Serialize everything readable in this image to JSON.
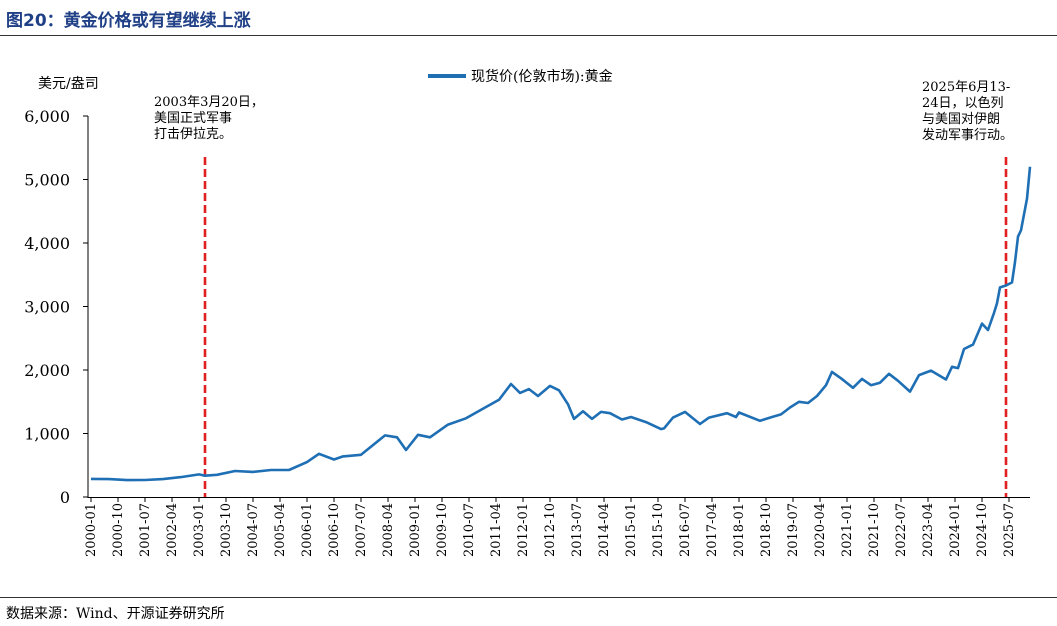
{
  "title": "图20：黄金价格或有望继续上涨",
  "source": "数据来源：Wind、开源证券研究所",
  "chart_data": {
    "type": "line",
    "ylabel": "美元/盎司",
    "ylim": [
      0,
      6000
    ],
    "yticks": [
      0,
      1000,
      2000,
      3000,
      4000,
      5000,
      6000
    ],
    "ytick_labels": [
      "0",
      "1,000",
      "2,000",
      "3,000",
      "4,000",
      "5,000",
      "6,000"
    ],
    "xtick_labels": [
      "2000-01",
      "2000-10",
      "2001-07",
      "2002-04",
      "2003-01",
      "2003-10",
      "2004-07",
      "2005-04",
      "2006-01",
      "2006-10",
      "2007-07",
      "2008-04",
      "2009-01",
      "2009-10",
      "2010-07",
      "2011-04",
      "2012-01",
      "2012-10",
      "2013-07",
      "2014-04",
      "2015-01",
      "2015-10",
      "2016-07",
      "2017-04",
      "2018-01",
      "2018-10",
      "2019-07",
      "2020-04",
      "2021-01",
      "2021-10",
      "2022-07",
      "2023-04",
      "2024-01",
      "2024-10",
      "2025-07"
    ],
    "legend": "top-center",
    "series": [
      {
        "name": "现货价(伦敦市场):黄金",
        "color": "#1f6fb5",
        "points": [
          [
            "2000-01",
            285
          ],
          [
            "2000-07",
            282
          ],
          [
            "2001-01",
            266
          ],
          [
            "2001-07",
            268
          ],
          [
            "2002-01",
            282
          ],
          [
            "2002-07",
            313
          ],
          [
            "2003-01",
            356
          ],
          [
            "2003-03",
            335
          ],
          [
            "2003-07",
            350
          ],
          [
            "2004-01",
            410
          ],
          [
            "2004-07",
            395
          ],
          [
            "2005-01",
            425
          ],
          [
            "2005-07",
            425
          ],
          [
            "2006-01",
            550
          ],
          [
            "2006-05",
            680
          ],
          [
            "2006-10",
            590
          ],
          [
            "2007-01",
            640
          ],
          [
            "2007-07",
            665
          ],
          [
            "2008-03",
            970
          ],
          [
            "2008-07",
            940
          ],
          [
            "2008-10",
            740
          ],
          [
            "2009-02",
            980
          ],
          [
            "2009-06",
            940
          ],
          [
            "2009-12",
            1140
          ],
          [
            "2010-06",
            1240
          ],
          [
            "2010-12",
            1400
          ],
          [
            "2011-05",
            1530
          ],
          [
            "2011-09",
            1780
          ],
          [
            "2011-12",
            1640
          ],
          [
            "2012-03",
            1700
          ],
          [
            "2012-06",
            1590
          ],
          [
            "2012-10",
            1750
          ],
          [
            "2013-01",
            1680
          ],
          [
            "2013-04",
            1460
          ],
          [
            "2013-06",
            1230
          ],
          [
            "2013-09",
            1350
          ],
          [
            "2013-12",
            1230
          ],
          [
            "2014-03",
            1340
          ],
          [
            "2014-06",
            1320
          ],
          [
            "2014-10",
            1220
          ],
          [
            "2015-01",
            1260
          ],
          [
            "2015-06",
            1180
          ],
          [
            "2015-11",
            1070
          ],
          [
            "2015-12",
            1080
          ],
          [
            "2016-03",
            1250
          ],
          [
            "2016-07",
            1340
          ],
          [
            "2016-12",
            1150
          ],
          [
            "2017-03",
            1250
          ],
          [
            "2017-09",
            1320
          ],
          [
            "2017-12",
            1260
          ],
          [
            "2018-01",
            1330
          ],
          [
            "2018-08",
            1200
          ],
          [
            "2018-12",
            1260
          ],
          [
            "2019-03",
            1300
          ],
          [
            "2019-06",
            1410
          ],
          [
            "2019-09",
            1500
          ],
          [
            "2019-12",
            1480
          ],
          [
            "2020-03",
            1590
          ],
          [
            "2020-06",
            1760
          ],
          [
            "2020-08",
            1970
          ],
          [
            "2020-11",
            1870
          ],
          [
            "2021-03",
            1720
          ],
          [
            "2021-06",
            1860
          ],
          [
            "2021-09",
            1760
          ],
          [
            "2021-12",
            1800
          ],
          [
            "2022-03",
            1940
          ],
          [
            "2022-06",
            1830
          ],
          [
            "2022-10",
            1660
          ],
          [
            "2023-01",
            1920
          ],
          [
            "2023-05",
            1990
          ],
          [
            "2023-10",
            1850
          ],
          [
            "2023-12",
            2050
          ],
          [
            "2024-02",
            2030
          ],
          [
            "2024-04",
            2330
          ],
          [
            "2024-07",
            2400
          ],
          [
            "2024-10",
            2730
          ],
          [
            "2024-12",
            2630
          ],
          [
            "2025-02",
            2900
          ],
          [
            "2025-03",
            3050
          ],
          [
            "2025-04",
            3300
          ],
          [
            "2025-06",
            3330
          ],
          [
            "2025-08",
            3380
          ],
          [
            "2025-09",
            3700
          ],
          [
            "2025-10",
            4100
          ],
          [
            "2025-11",
            4200
          ],
          [
            "2026-01",
            4700
          ],
          [
            "2026-02",
            5200
          ]
        ]
      }
    ],
    "events": [
      {
        "at": "2003-03",
        "lines": [
          "2003年3月20日，",
          "美国正式军事",
          "打击伊拉克。"
        ]
      },
      {
        "at": "2025-06",
        "lines": [
          "2025年6月13-",
          "24日，以色列",
          "与美国对伊朗",
          "发动军事行动。"
        ]
      }
    ]
  }
}
